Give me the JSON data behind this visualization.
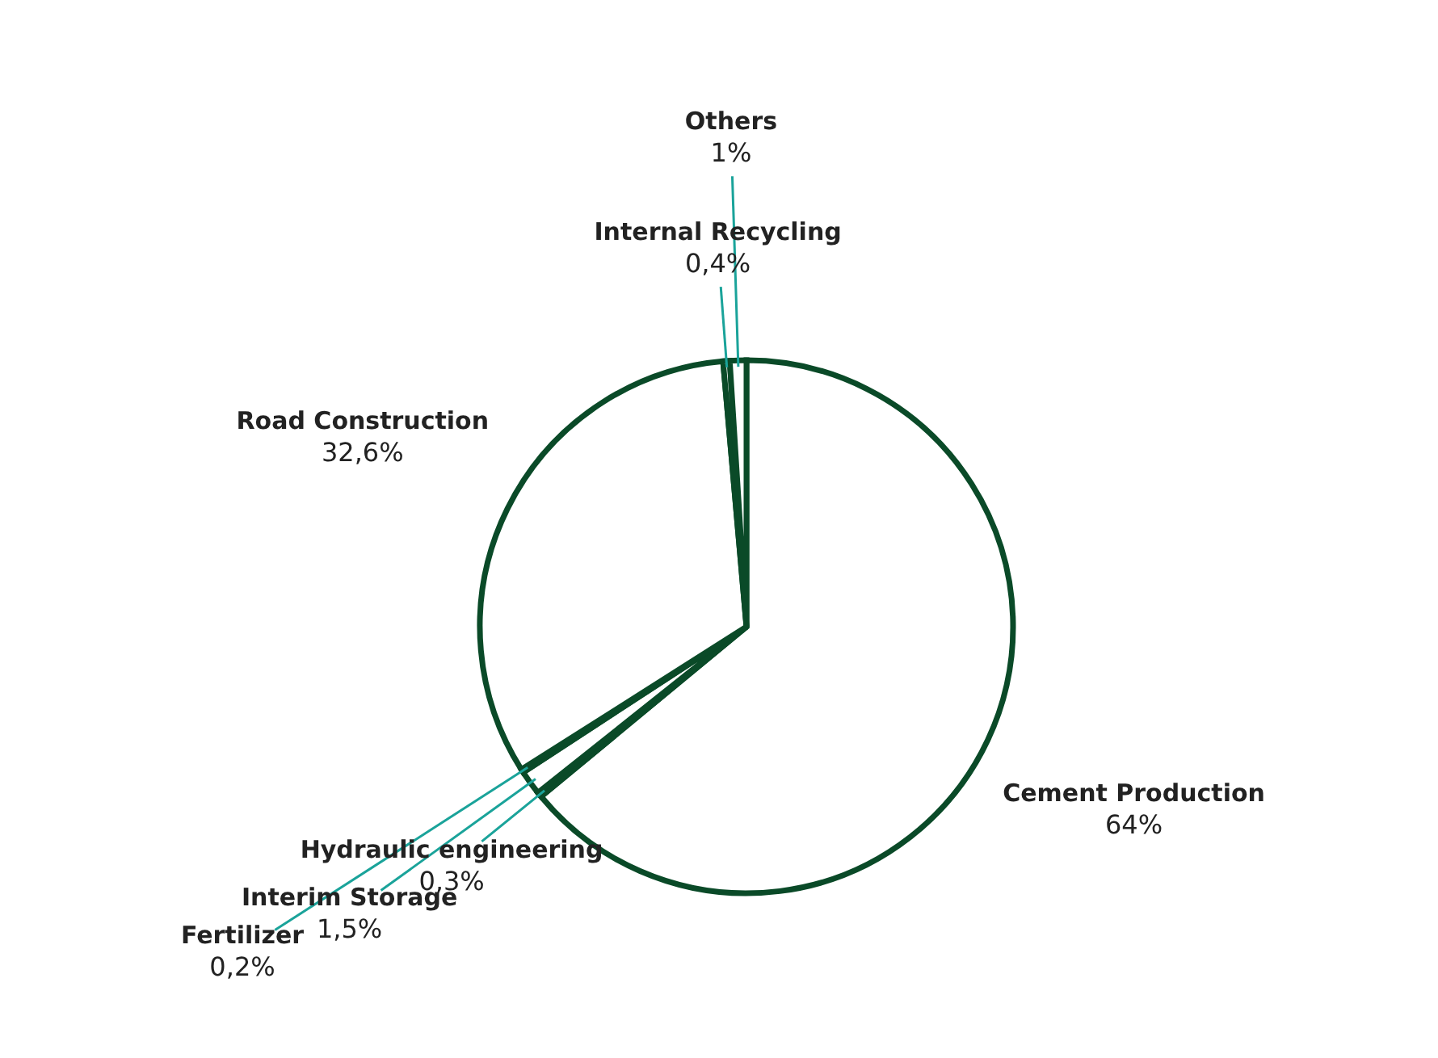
{
  "chart_data": {
    "type": "pie",
    "categories": [
      "Cement Production",
      "Hydraulic engineering",
      "Interim Storage",
      "Fertilizer",
      "Road Construction",
      "Internal Recycling",
      "Others"
    ],
    "values": [
      64,
      0.3,
      1.5,
      0.2,
      32.6,
      0.4,
      1
    ],
    "colors": [
      "#ffffff",
      "#ffffff",
      "#ffffff",
      "#ffffff",
      "#ffffff",
      "#ffffff",
      "#ffffff"
    ],
    "value_labels": [
      "64%",
      "0,3%",
      "1,5%",
      "0,2%",
      "32,6%",
      "0,4%",
      "1%"
    ]
  }
}
